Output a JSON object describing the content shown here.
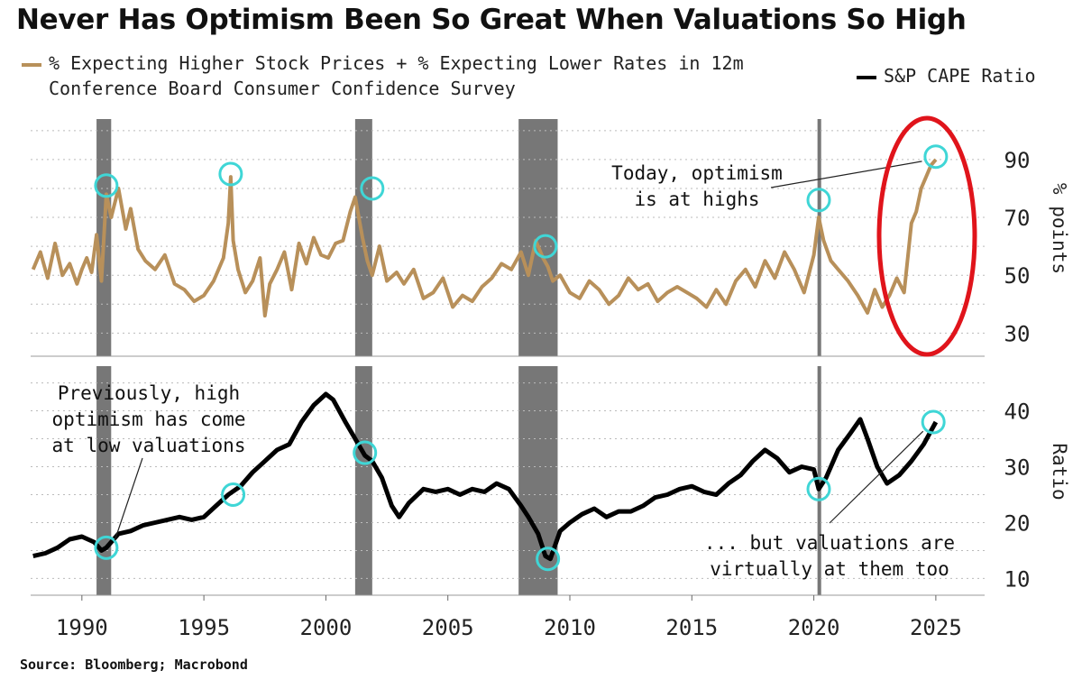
{
  "title": "Never Has Optimism Been So Great When Valuations So High",
  "source": "Source: Bloomberg; Macrobond",
  "colors": {
    "optimism": "#B8905A",
    "cape": "#000000",
    "recession": "#777777",
    "highlight": "#3FD6D6",
    "ellipse": "#E0141B",
    "grid": "#BBBBBB"
  },
  "chart_data": [
    {
      "type": "line",
      "panel": "top",
      "title": "",
      "legend": [
        "% Expecting Higher Stock Prices + % Expecting Lower Rates in 12m",
        "Conference Board Consumer Confidence Survey"
      ],
      "ylabel": "% points",
      "ylim": [
        22,
        104
      ],
      "yticks": [
        30,
        50,
        70,
        90
      ],
      "xlim": [
        1987.9,
        2027.0
      ],
      "series": [
        {
          "name": "% Expecting Higher Stock Prices + % Expecting Lower Rates in 12m",
          "x": [
            1988.0,
            1988.3,
            1988.6,
            1988.9,
            1989.2,
            1989.5,
            1989.8,
            1990.0,
            1990.2,
            1990.4,
            1990.6,
            1990.8,
            1991.0,
            1991.2,
            1991.5,
            1991.8,
            1992.0,
            1992.3,
            1992.6,
            1993.0,
            1993.4,
            1993.8,
            1994.2,
            1994.6,
            1995.0,
            1995.4,
            1995.8,
            1996.0,
            1996.1,
            1996.2,
            1996.4,
            1996.7,
            1997.0,
            1997.3,
            1997.5,
            1997.7,
            1998.0,
            1998.3,
            1998.6,
            1998.9,
            1999.2,
            1999.5,
            1999.8,
            2000.1,
            2000.4,
            2000.7,
            2001.0,
            2001.2,
            2001.5,
            2001.7,
            2001.9,
            2002.2,
            2002.5,
            2002.9,
            2003.2,
            2003.6,
            2004.0,
            2004.4,
            2004.8,
            2005.2,
            2005.6,
            2006.0,
            2006.4,
            2006.8,
            2007.2,
            2007.6,
            2008.0,
            2008.3,
            2008.6,
            2008.9,
            2009.1,
            2009.3,
            2009.6,
            2010.0,
            2010.4,
            2010.8,
            2011.2,
            2011.6,
            2012.0,
            2012.4,
            2012.8,
            2013.2,
            2013.6,
            2014.0,
            2014.4,
            2014.8,
            2015.2,
            2015.6,
            2016.0,
            2016.4,
            2016.8,
            2017.2,
            2017.6,
            2018.0,
            2018.4,
            2018.8,
            2019.2,
            2019.6,
            2020.0,
            2020.2,
            2020.4,
            2020.7,
            2021.0,
            2021.4,
            2021.8,
            2022.2,
            2022.5,
            2022.8,
            2023.1,
            2023.4,
            2023.7,
            2024.0,
            2024.2,
            2024.4,
            2024.6,
            2024.8,
            2025.0
          ],
          "values": [
            52,
            58,
            49,
            61,
            50,
            54,
            47,
            52,
            56,
            51,
            64,
            48,
            78,
            70,
            80,
            66,
            73,
            59,
            55,
            52,
            57,
            47,
            45,
            41,
            43,
            48,
            56,
            68,
            84,
            62,
            52,
            44,
            48,
            56,
            36,
            47,
            52,
            58,
            45,
            61,
            54,
            63,
            57,
            56,
            61,
            62,
            72,
            77,
            63,
            55,
            50,
            60,
            48,
            51,
            47,
            52,
            42,
            44,
            49,
            39,
            43,
            41,
            46,
            49,
            54,
            52,
            58,
            50,
            62,
            56,
            53,
            48,
            50,
            44,
            42,
            48,
            45,
            40,
            43,
            49,
            45,
            47,
            41,
            44,
            46,
            44,
            42,
            39,
            45,
            40,
            48,
            52,
            46,
            55,
            49,
            58,
            52,
            44,
            57,
            70,
            62,
            55,
            52,
            48,
            43,
            37,
            45,
            39,
            43,
            49,
            44,
            68,
            72,
            80,
            84,
            88,
            90
          ],
          "color": "#B8905A"
        }
      ],
      "highlights": [
        {
          "x": 1991.0,
          "y": 81
        },
        {
          "x": 1996.1,
          "y": 85
        },
        {
          "x": 2001.9,
          "y": 80
        },
        {
          "x": 2009.0,
          "y": 60
        },
        {
          "x": 2020.2,
          "y": 76
        },
        {
          "x": 2025.0,
          "y": 91
        }
      ],
      "annotation": {
        "text": [
          "Today, optimism",
          "is at highs"
        ],
        "point": {
          "x": 2024.8,
          "y": 90
        }
      }
    },
    {
      "type": "line",
      "panel": "bottom",
      "title": "",
      "legend": [
        "S&P CAPE Ratio"
      ],
      "ylabel": "Ratio",
      "ylim": [
        7,
        48
      ],
      "yticks": [
        10,
        20,
        30,
        40
      ],
      "xlim": [
        1987.9,
        2027.0
      ],
      "xticks": [
        1990,
        1995,
        2000,
        2005,
        2010,
        2015,
        2020,
        2025
      ],
      "series": [
        {
          "name": "S&P CAPE Ratio",
          "x": [
            1988.0,
            1988.5,
            1989.0,
            1989.5,
            1990.0,
            1990.5,
            1990.8,
            1991.0,
            1991.5,
            1992.0,
            1992.5,
            1993.0,
            1993.5,
            1994.0,
            1994.5,
            1995.0,
            1995.5,
            1996.0,
            1996.5,
            1997.0,
            1997.5,
            1998.0,
            1998.5,
            1999.0,
            1999.5,
            2000.0,
            2000.3,
            2000.8,
            2001.2,
            2001.6,
            2001.9,
            2002.3,
            2002.7,
            2003.0,
            2003.4,
            2004.0,
            2004.5,
            2005.0,
            2005.5,
            2006.0,
            2006.5,
            2007.0,
            2007.5,
            2008.0,
            2008.3,
            2008.7,
            2009.0,
            2009.2,
            2009.6,
            2010.0,
            2010.5,
            2011.0,
            2011.5,
            2012.0,
            2012.5,
            2013.0,
            2013.5,
            2014.0,
            2014.5,
            2015.0,
            2015.5,
            2016.0,
            2016.5,
            2017.0,
            2017.5,
            2018.0,
            2018.5,
            2019.0,
            2019.5,
            2020.0,
            2020.2,
            2020.5,
            2021.0,
            2021.5,
            2021.9,
            2022.2,
            2022.6,
            2023.0,
            2023.5,
            2024.0,
            2024.5,
            2025.0
          ],
          "values": [
            14,
            14.5,
            15.5,
            17,
            17.5,
            16.5,
            15,
            15.5,
            18,
            18.5,
            19.5,
            20,
            20.5,
            21,
            20.5,
            21,
            23,
            25,
            26.5,
            29,
            31,
            33,
            34,
            38,
            41,
            43,
            42,
            38,
            35,
            32,
            31,
            28,
            23,
            21,
            23.5,
            26,
            25.5,
            26,
            25,
            26,
            25.5,
            27,
            26,
            23,
            21,
            18,
            14,
            13.5,
            18.5,
            20,
            21.5,
            22.5,
            21,
            22,
            22,
            23,
            24.5,
            25,
            26,
            26.5,
            25.5,
            25,
            27,
            28.5,
            31,
            33,
            31.5,
            29,
            30,
            29.5,
            26,
            28,
            33,
            36,
            38.5,
            35,
            30,
            27,
            28.5,
            31,
            34,
            38
          ],
          "color": "#000000"
        }
      ],
      "highlights": [
        {
          "x": 1991.0,
          "y": 15.5
        },
        {
          "x": 1996.2,
          "y": 25
        },
        {
          "x": 2001.6,
          "y": 32.5
        },
        {
          "x": 2009.1,
          "y": 13.5
        },
        {
          "x": 2020.2,
          "y": 26
        },
        {
          "x": 2024.9,
          "y": 38
        }
      ],
      "annotations": [
        {
          "text": [
            "Previously, high",
            "optimism has come",
            "at low valuations"
          ],
          "point": {
            "x": 1991.2,
            "y": 16.5
          }
        },
        {
          "text": [
            "... but valuations are",
            "virtually at them too"
          ],
          "point": {
            "x": 2024.7,
            "y": 37
          }
        }
      ]
    }
  ],
  "recessions": [
    [
      1990.6,
      1991.2
    ],
    [
      2001.2,
      2001.9
    ],
    [
      2007.9,
      2009.5
    ],
    [
      2020.15,
      2020.3
    ]
  ]
}
